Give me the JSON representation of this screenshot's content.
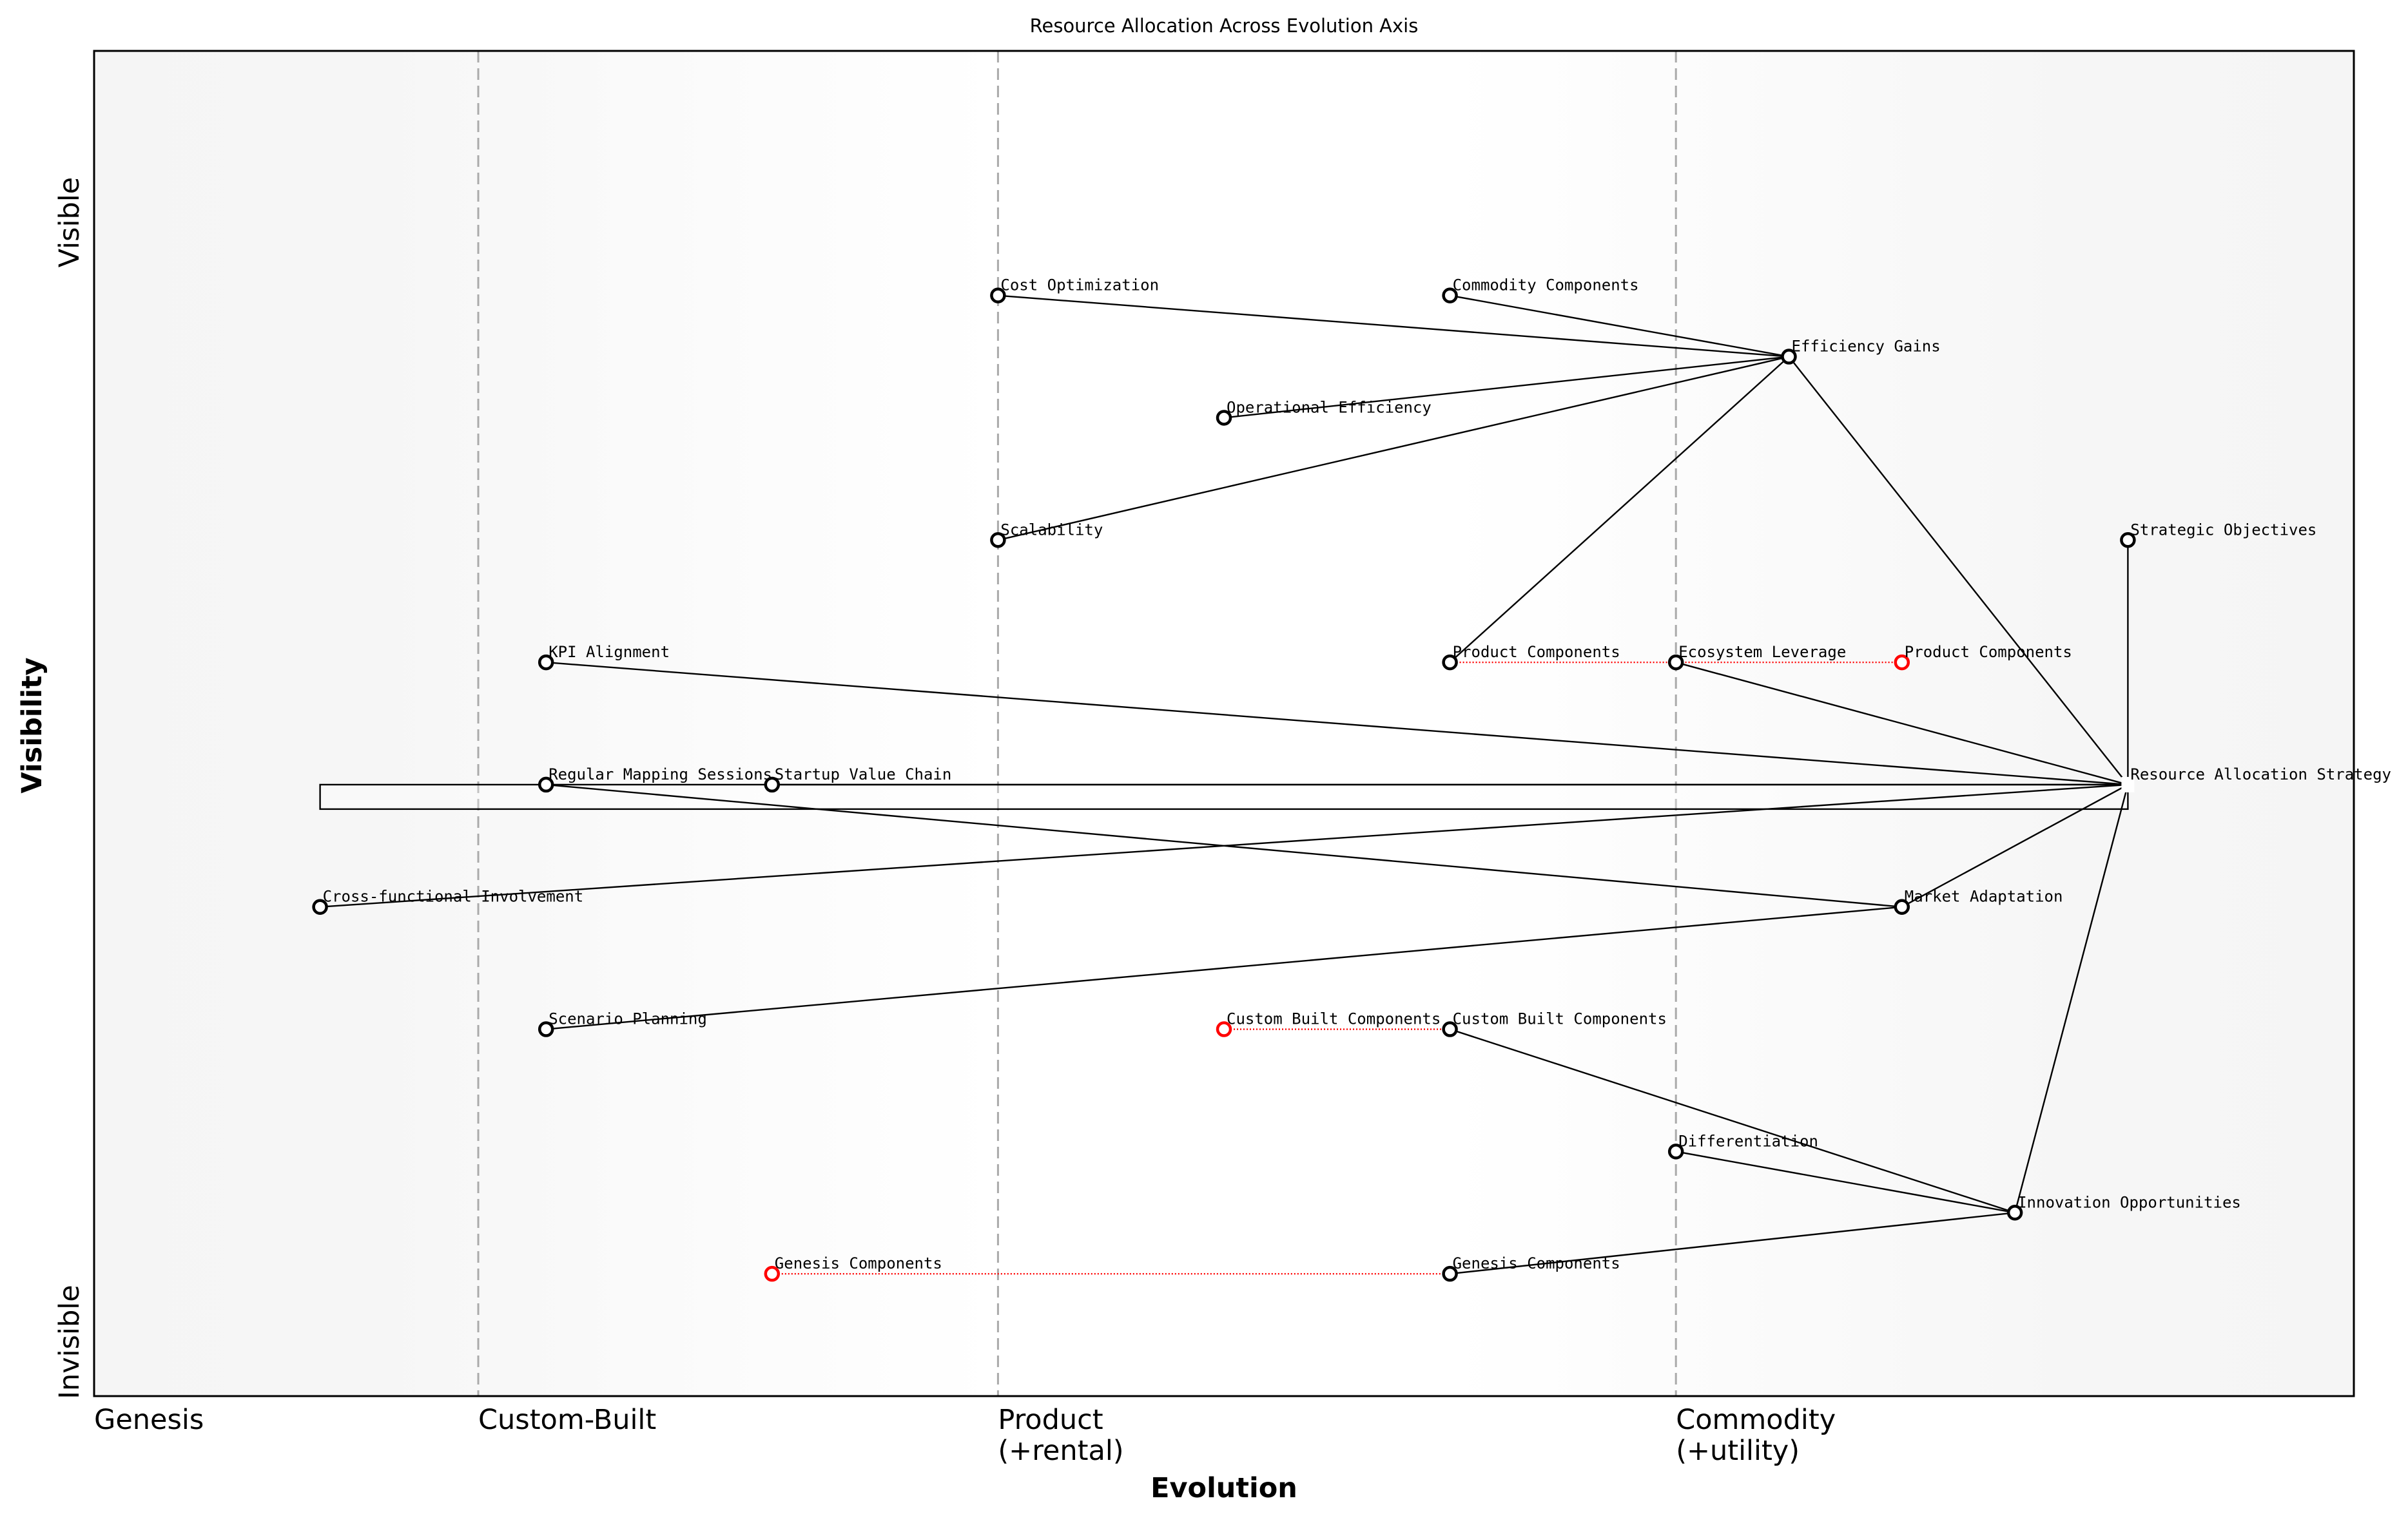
{
  "chart_data": {
    "type": "wardley-map",
    "title": "Resource Allocation Across Evolution Axis",
    "xlabel": "Evolution",
    "ylabel": "Visibility",
    "xlim": [
      0,
      1
    ],
    "ylim": [
      0,
      1.1
    ],
    "y_top_label": "Visible",
    "y_bottom_label": "Invisible",
    "stages": [
      {
        "label": "Genesis",
        "sublabel": "",
        "evolution": 0.0
      },
      {
        "label": "Custom-Built",
        "sublabel": "",
        "evolution": 0.17
      },
      {
        "label": "Product",
        "sublabel": "(+rental)",
        "evolution": 0.4
      },
      {
        "label": "Commodity",
        "sublabel": "(+utility)",
        "evolution": 0.7
      }
    ],
    "components": [
      {
        "name": "Cost Optimization",
        "evolution": 0.4,
        "visibility": 0.9
      },
      {
        "name": "Commodity Components",
        "evolution": 0.6,
        "visibility": 0.9
      },
      {
        "name": "Efficiency Gains",
        "evolution": 0.75,
        "visibility": 0.85
      },
      {
        "name": "Operational Efficiency",
        "evolution": 0.5,
        "visibility": 0.8
      },
      {
        "name": "Scalability",
        "evolution": 0.4,
        "visibility": 0.7
      },
      {
        "name": "Strategic Objectives",
        "evolution": 0.9,
        "visibility": 0.7
      },
      {
        "name": "KPI Alignment",
        "evolution": 0.2,
        "visibility": 0.6
      },
      {
        "name": "Product Components",
        "evolution": 0.6,
        "visibility": 0.6
      },
      {
        "name": "Ecosystem Leverage",
        "evolution": 0.7,
        "visibility": 0.6
      },
      {
        "name": "Product Components",
        "evolution": 0.8,
        "visibility": 0.6,
        "evolved": true
      },
      {
        "name": "Regular Mapping Sessions",
        "evolution": 0.2,
        "visibility": 0.5
      },
      {
        "name": "Startup Value Chain",
        "evolution": 0.3,
        "visibility": 0.5
      },
      {
        "name": "Resource Allocation Strategy",
        "evolution": 0.9,
        "visibility": 0.5,
        "anchor": true
      },
      {
        "name": "Cross-functional Involvement",
        "evolution": 0.1,
        "visibility": 0.4
      },
      {
        "name": "Market Adaptation",
        "evolution": 0.8,
        "visibility": 0.4
      },
      {
        "name": "Scenario Planning",
        "evolution": 0.2,
        "visibility": 0.3
      },
      {
        "name": "Custom Built Components",
        "evolution": 0.5,
        "visibility": 0.3,
        "evolved": true
      },
      {
        "name": "Custom Built Components",
        "evolution": 0.6,
        "visibility": 0.3
      },
      {
        "name": "Differentiation",
        "evolution": 0.7,
        "visibility": 0.2
      },
      {
        "name": "Innovation Opportunities",
        "evolution": 0.85,
        "visibility": 0.15
      },
      {
        "name": "Genesis Components",
        "evolution": 0.3,
        "visibility": 0.1,
        "evolved": true
      },
      {
        "name": "Genesis Components",
        "evolution": 0.6,
        "visibility": 0.1
      }
    ],
    "links": [
      [
        0,
        2
      ],
      [
        1,
        2
      ],
      [
        3,
        2
      ],
      [
        4,
        2
      ],
      [
        7,
        2
      ],
      [
        2,
        12
      ],
      [
        5,
        12
      ],
      [
        6,
        12
      ],
      [
        8,
        12
      ],
      [
        11,
        12
      ],
      [
        13,
        12
      ],
      [
        10,
        14
      ],
      [
        14,
        12
      ],
      [
        15,
        14
      ],
      [
        17,
        19
      ],
      [
        18,
        19
      ],
      [
        21,
        19
      ],
      [
        19,
        12
      ]
    ],
    "evolution_links": [
      [
        7,
        9
      ],
      [
        16,
        17
      ],
      [
        20,
        21
      ]
    ],
    "pipeline": {
      "evolution": [
        0.1,
        0.9
      ],
      "visibility": [
        0.48,
        0.5
      ]
    },
    "colors": {
      "link": "#000000",
      "evolution_link": "#ff0000",
      "evolved_marker": "#ff0000",
      "stage_line": "#aaaaaa",
      "band_edge": "#f5f5f5",
      "band_center": "#ffffff"
    }
  }
}
